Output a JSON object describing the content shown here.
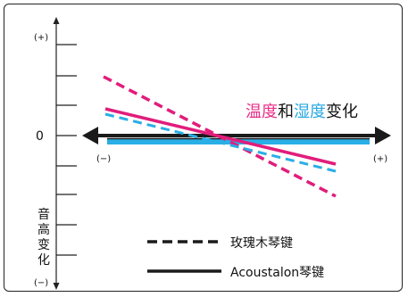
{
  "axis": {
    "top_label": "(+)",
    "bottom_label": "(−)",
    "zero_label": "0",
    "vertical_label_chars": [
      "音",
      "高",
      "变",
      "化"
    ]
  },
  "horizontal": {
    "left_label": "(−)",
    "right_label": "(+)"
  },
  "title": {
    "part1": "温度",
    "part2": "和",
    "part3": "湿度",
    "part4": "变化",
    "color_temperature": "#e8308a",
    "color_humidity": "#2aa8e0",
    "color_text": "#111111"
  },
  "legend": {
    "dashed_label": "玫瑰木琴键",
    "solid_label": "Acoustalon琴键"
  },
  "colors": {
    "magenta": "#e11d7b",
    "cyan": "#2aaee6",
    "black": "#1a1a1a"
  }
}
